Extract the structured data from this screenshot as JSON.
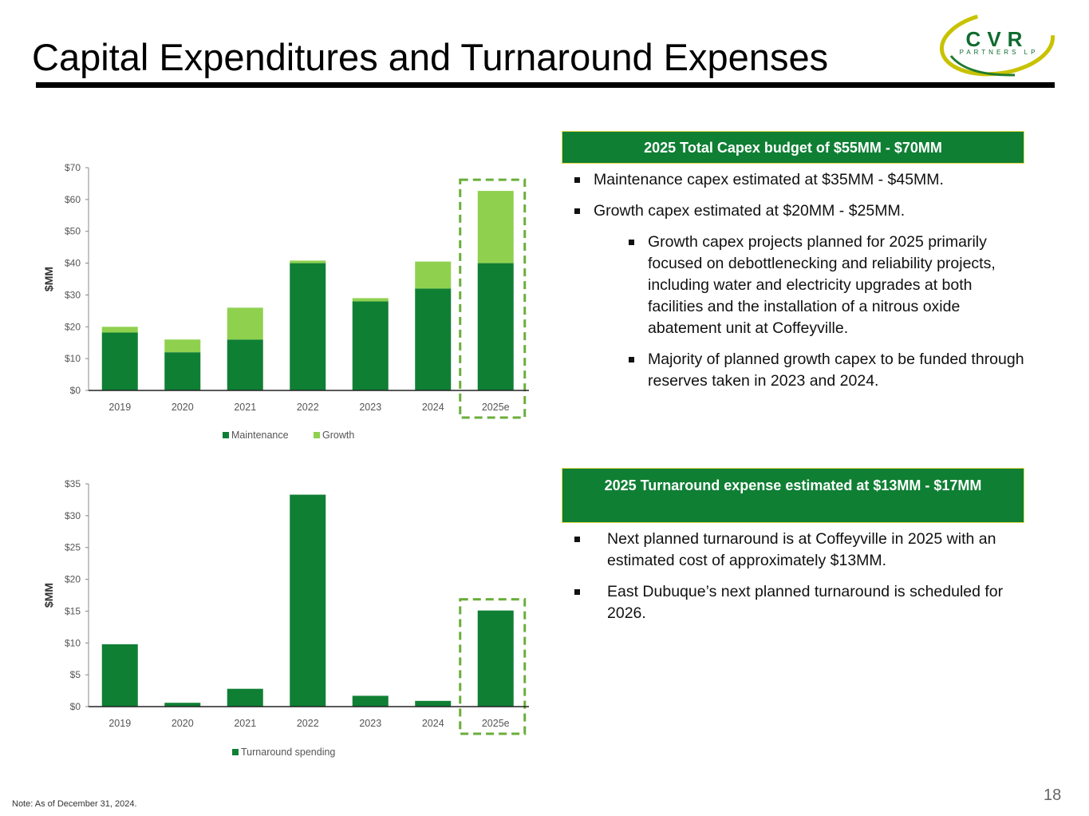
{
  "page": {
    "title": "Capital Expenditures and Turnaround Expenses",
    "note": "Note:  As of December 31, 2024.",
    "page_number": "18"
  },
  "logo": {
    "wordmark": "CVR",
    "subtitle": "PARTNERS LP",
    "colors": {
      "ring": "#c8c200",
      "text": "#0f6b2f",
      "ring_dark": "#1f7a2f"
    }
  },
  "colors": {
    "maintenance": "#0f7f34",
    "growth": "#8fd14f",
    "turnaround": "#0f7f34",
    "highlight_dash": "#6aae3a",
    "header_box": "#0f7f34",
    "header_border": "#e8d84a"
  },
  "chart_data": [
    {
      "type": "bar",
      "stacked": true,
      "categories": [
        "2019",
        "2020",
        "2021",
        "2022",
        "2023",
        "2024",
        "2025e"
      ],
      "series": [
        {
          "name": "Maintenance",
          "values": [
            18.2,
            12,
            16,
            40,
            28,
            32,
            40
          ]
        },
        {
          "name": "Growth",
          "values": [
            1.8,
            4,
            10,
            0.8,
            1,
            8.5,
            22.7
          ]
        }
      ],
      "ylabel": "$MM",
      "ylim": [
        0,
        70
      ],
      "yticks": [
        0,
        10,
        20,
        30,
        40,
        50,
        60,
        70
      ],
      "ytick_labels": [
        "$0",
        "$10",
        "$20",
        "$30",
        "$40",
        "$50",
        "$60",
        "$70"
      ],
      "highlight_category": "2025e",
      "legend_position": "bottom",
      "grid": false
    },
    {
      "type": "bar",
      "categories": [
        "2019",
        "2020",
        "2021",
        "2022",
        "2023",
        "2024",
        "2025e"
      ],
      "series": [
        {
          "name": "Turnaround spending",
          "values": [
            9.8,
            0.6,
            2.8,
            33.3,
            1.7,
            0.9,
            15.1
          ]
        }
      ],
      "ylabel": "$MM",
      "ylim": [
        0,
        35
      ],
      "yticks": [
        0,
        5,
        10,
        15,
        20,
        25,
        30,
        35
      ],
      "ytick_labels": [
        "$0",
        "$5",
        "$10",
        "$15",
        "$20",
        "$25",
        "$30",
        "$35"
      ],
      "highlight_category": "2025e",
      "legend_position": "bottom",
      "grid": false
    }
  ],
  "capex": {
    "header": "2025 Total Capex budget of $55MM - $70MM",
    "bullets": [
      "Maintenance capex estimated at $35MM - $45MM.",
      "Growth capex estimated at $20MM - $25MM."
    ],
    "sub_bullets": [
      "Growth capex projects planned for 2025 primarily focused on debottlenecking and reliability projects, including water and electricity upgrades at both facilities and the installation of a nitrous oxide abatement unit at Coffeyville.",
      "Majority of planned growth capex to be funded through reserves taken in 2023 and 2024."
    ]
  },
  "turnaround": {
    "header": "2025 Turnaround expense estimated at $13MM - $17MM",
    "bullets": [
      "Next planned turnaround is at Coffeyville in 2025 with an estimated cost of approximately $13MM.",
      "East Dubuque’s next planned turnaround is scheduled for 2026."
    ]
  }
}
